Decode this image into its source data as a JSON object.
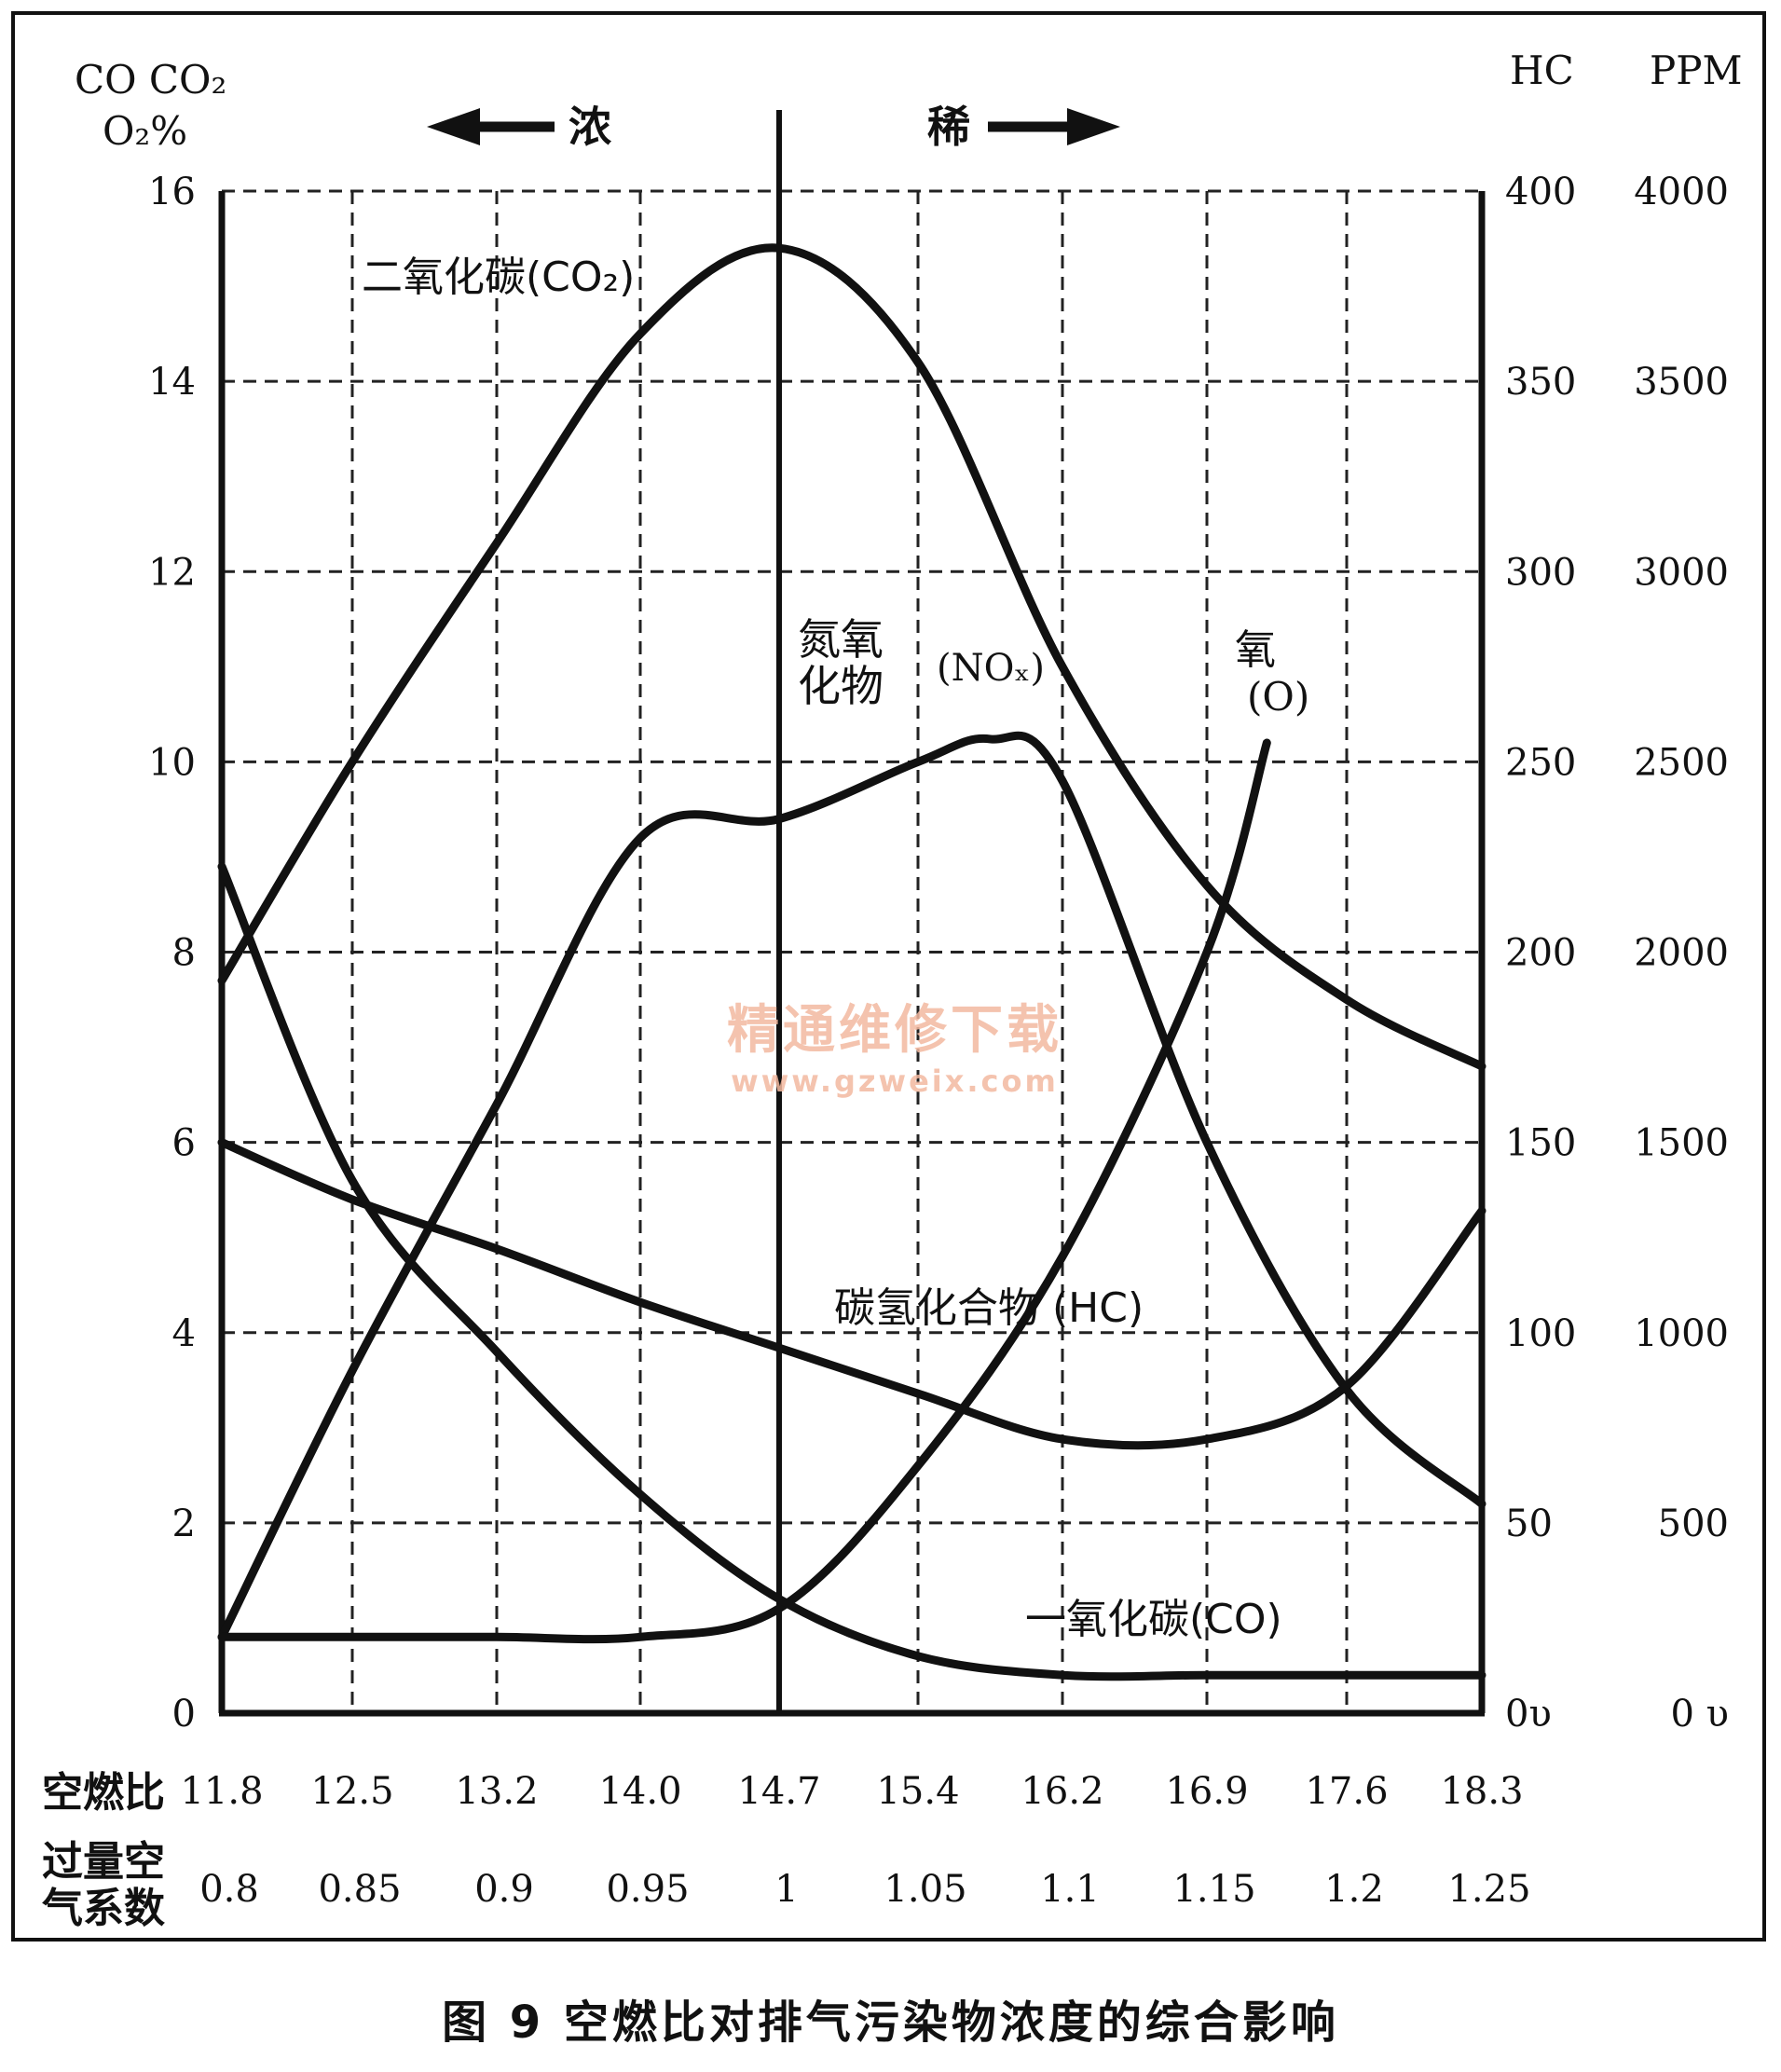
{
  "figure": {
    "caption": "图 9 空燃比对排气污染物浓度的综合影响",
    "watermark_line1": "精通维修下载",
    "watermark_line2": "www.gzweix.com"
  },
  "chart_data": {
    "type": "line",
    "title": "",
    "left_axis": {
      "label_line1": "CO CO₂",
      "label_line2": "O₂%",
      "ticks": [
        "0",
        "2",
        "4",
        "6",
        "8",
        "10",
        "12",
        "14",
        "16"
      ],
      "ylim": [
        0,
        16
      ]
    },
    "right_axis_hc": {
      "label": "HC",
      "ticks": [
        "0υ",
        "50",
        "100",
        "150",
        "200",
        "250",
        "300",
        "350",
        "400"
      ],
      "ylim": [
        0,
        400
      ]
    },
    "right_axis_ppm": {
      "label": "PPM",
      "ticks": [
        "0 υ",
        "500",
        "1000",
        "1500",
        "2000",
        "2500",
        "3000",
        "3500",
        "4000"
      ],
      "ylim": [
        0,
        4000
      ]
    },
    "x_axis": {
      "row1_label": "空燃比",
      "air_fuel_ratio": [
        "11.8",
        "12.5",
        "13.2",
        "14.0",
        "14.7",
        "15.4",
        "16.2",
        "16.9",
        "17.6",
        "18.3"
      ],
      "row2_label": "过量空气系数",
      "row2_label_line1": "过量空",
      "row2_label_line2": "气系数",
      "excess_air": [
        "0.8",
        "0.85",
        "0.9",
        "0.95",
        "1",
        "1.05",
        "1.1",
        "1.15",
        "1.2",
        "1.25"
      ]
    },
    "regions": {
      "rich": "浓",
      "lean": "稀",
      "stoich_x": 14.7
    },
    "grid": true,
    "series": [
      {
        "name": "二氧化碳(CO₂)",
        "axis": "left",
        "x": [
          11.8,
          12.5,
          13.2,
          14.0,
          14.7,
          15.4,
          16.2,
          16.9,
          17.6,
          18.3
        ],
        "y": [
          7.7,
          10.0,
          12.3,
          14.5,
          15.4,
          14.2,
          11.0,
          8.7,
          7.5,
          6.8
        ]
      },
      {
        "name": "氮氧化物 (NOₓ)",
        "axis": "ppm",
        "x": [
          11.8,
          12.5,
          13.2,
          14.0,
          14.7,
          15.4,
          15.8,
          16.2,
          16.9,
          17.6,
          18.3
        ],
        "y": [
          200,
          900,
          1600,
          2300,
          2350,
          2500,
          2560,
          2450,
          1500,
          850,
          550
        ]
      },
      {
        "name": "氧 (O)",
        "axis": "left",
        "x": [
          11.8,
          12.5,
          13.2,
          14.0,
          14.7,
          15.4,
          16.2,
          16.9,
          17.2
        ],
        "y": [
          0.8,
          0.8,
          0.8,
          0.8,
          1.1,
          2.6,
          4.8,
          8.0,
          10.2
        ]
      },
      {
        "name": "碳氢化合物 (HC)",
        "axis": "hc",
        "x": [
          11.8,
          12.5,
          13.2,
          14.0,
          14.7,
          15.4,
          16.2,
          16.9,
          17.6,
          18.3
        ],
        "y": [
          150,
          135,
          122,
          108,
          96,
          84,
          72,
          72,
          86,
          132
        ]
      },
      {
        "name": "一氧化碳(CO)",
        "axis": "left",
        "x": [
          11.8,
          12.5,
          13.2,
          14.0,
          14.7,
          15.4,
          16.2,
          16.9,
          17.6,
          18.3
        ],
        "y": [
          8.9,
          5.6,
          3.8,
          2.3,
          1.2,
          0.6,
          0.4,
          0.4,
          0.4,
          0.4
        ]
      }
    ],
    "labels": {
      "co2": "二氧化碳(CO₂)",
      "nox_line1": "氮氧",
      "nox_line2": "化物",
      "nox_formula": "(NOₓ)",
      "o2_line1": "氧",
      "o2_line2": "(O)",
      "hc": "碳氢化合物 (HC)",
      "co": "一氧化碳(CO)"
    }
  }
}
